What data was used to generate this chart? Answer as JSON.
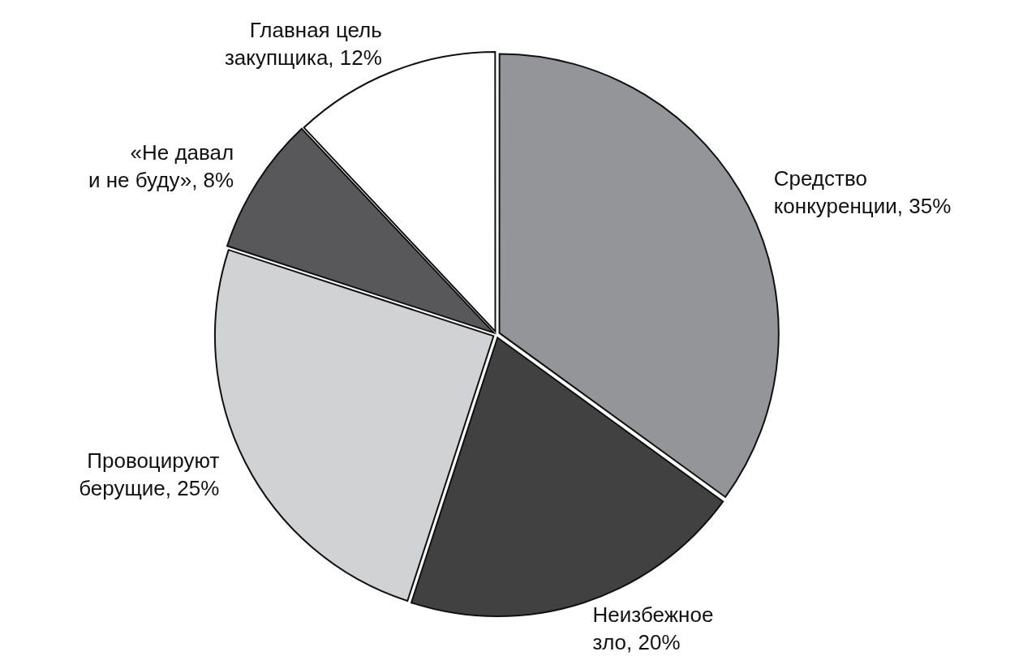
{
  "chart_data": {
    "type": "pie",
    "categories": [
      "Средство конкуренции",
      "Неизбежное зло",
      "Провоцируют берущие",
      "«Не давал и не буду»",
      "Главная цель закупщика"
    ],
    "values": [
      35,
      20,
      25,
      8,
      12
    ],
    "value_labels": [
      "35%",
      "20%",
      "25%",
      "8%",
      "12%"
    ],
    "colors": [
      "#939598",
      "#414142",
      "#d1d2d4",
      "#58585a",
      "#ffffff"
    ],
    "legend": false
  }
}
